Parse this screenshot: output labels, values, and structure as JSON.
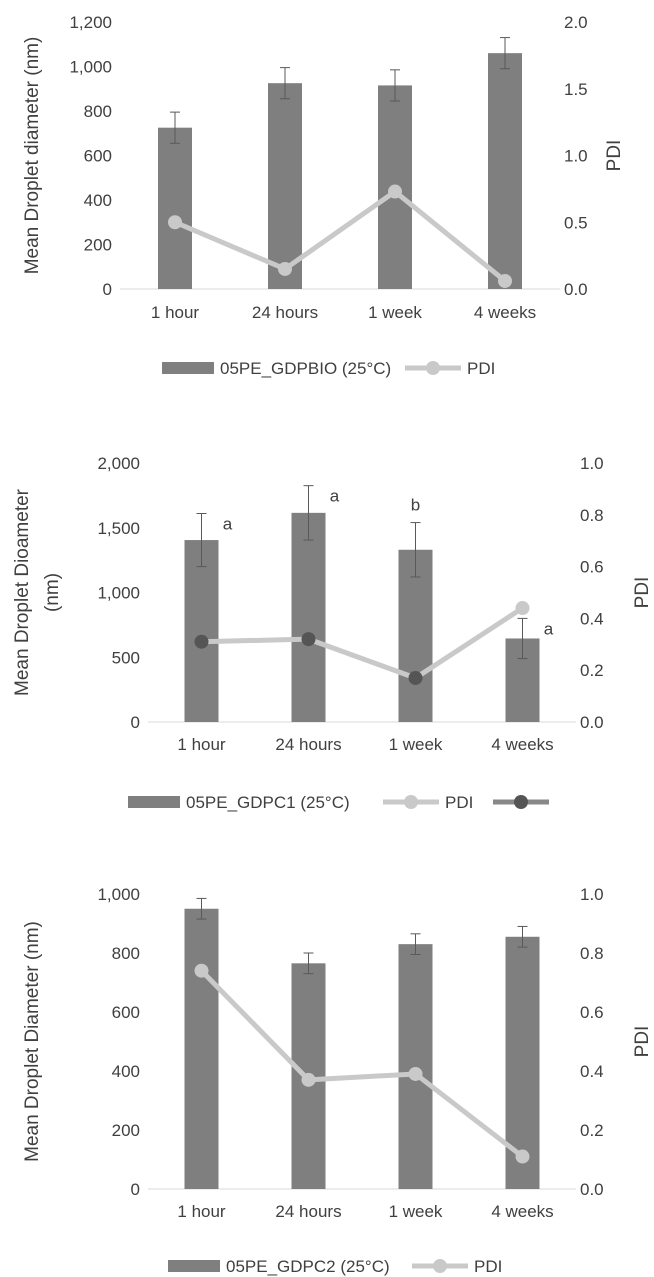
{
  "chart_data": [
    {
      "type": "bar",
      "categories": [
        "1 hour",
        "24 hours",
        "1 week",
        "4 weeks"
      ],
      "ylabel": "Mean Droplet diameter (nm)",
      "y2label": "PDI",
      "ylim": [
        0,
        1200
      ],
      "y2lim": [
        0,
        2.0
      ],
      "yticks": [
        0,
        200,
        400,
        600,
        800,
        1000,
        1200
      ],
      "ytick_labels": [
        "0",
        "200",
        "400",
        "600",
        "800",
        "1,000",
        "1,200"
      ],
      "y2ticks": [
        0,
        0.5,
        1.0,
        1.5,
        2.0
      ],
      "y2tick_labels": [
        "0.0",
        "0.5",
        "1.0",
        "1.5",
        "2.0"
      ],
      "series": [
        {
          "name": "05PE_GDPBIO (25°C)",
          "kind": "bar",
          "axis": "left",
          "values": [
            725,
            925,
            915,
            1060
          ],
          "errors": [
            70,
            70,
            70,
            70
          ]
        },
        {
          "name": "PDI",
          "kind": "line",
          "axis": "right",
          "values": [
            0.5,
            0.15,
            0.73,
            0.06
          ]
        }
      ],
      "annotations": [],
      "legend": [
        "05PE_GDPBIO (25°C)",
        "PDI"
      ],
      "legend_position": "bottom",
      "grid": false,
      "colors": {
        "bar": "#7f7f7f",
        "line": "#c9c9c9",
        "axis": "#d9d9d9",
        "text": "#404040"
      }
    },
    {
      "type": "bar",
      "categories": [
        "1 hour",
        "24 hours",
        "1 week",
        "4 weeks"
      ],
      "ylabel": "Mean Droplet Dioameter (nm)",
      "y2label": "PDI",
      "ylim": [
        0,
        2000
      ],
      "y2lim": [
        0,
        1.0
      ],
      "yticks": [
        0,
        500,
        1000,
        1500,
        2000
      ],
      "ytick_labels": [
        "0",
        "500",
        "1,000",
        "1,500",
        "2,000"
      ],
      "y2ticks": [
        0,
        0.2,
        0.4,
        0.6,
        0.8,
        1.0
      ],
      "y2tick_labels": [
        "0.0",
        "0.2",
        "0.4",
        "0.6",
        "0.8",
        "1.0"
      ],
      "series": [
        {
          "name": "05PE_GDPC1 (25°C)",
          "kind": "bar",
          "axis": "left",
          "values": [
            1405,
            1615,
            1330,
            645
          ],
          "errors": [
            205,
            210,
            210,
            155
          ]
        },
        {
          "name": "PDI",
          "kind": "line",
          "axis": "right",
          "values": [
            0.31,
            0.32,
            0.17,
            0.44
          ]
        }
      ],
      "annotations": [
        "a",
        "a",
        "b",
        "a"
      ],
      "legend": [
        "05PE_GDPC1 (25°C)",
        "PDI",
        ""
      ],
      "legend_position": "bottom",
      "grid": false,
      "colors": {
        "bar": "#7f7f7f",
        "line": "#c9c9c9",
        "axis": "#d9d9d9",
        "text": "#404040"
      }
    },
    {
      "type": "bar",
      "categories": [
        "1 hour",
        "24 hours",
        "1 week",
        "4 weeks"
      ],
      "ylabel": "Mean Droplet Diameter (nm)",
      "y2label": "PDI",
      "ylim": [
        0,
        1000
      ],
      "y2lim": [
        0,
        1.0
      ],
      "yticks": [
        0,
        200,
        400,
        600,
        800,
        1000
      ],
      "ytick_labels": [
        "0",
        "200",
        "400",
        "600",
        "800",
        "1,000"
      ],
      "y2ticks": [
        0,
        0.2,
        0.4,
        0.6,
        0.8,
        1.0
      ],
      "y2tick_labels": [
        "0.0",
        "0.2",
        "0.4",
        "0.6",
        "0.8",
        "1.0"
      ],
      "series": [
        {
          "name": "05PE_GDPC2 (25°C)",
          "kind": "bar",
          "axis": "left",
          "values": [
            950,
            765,
            830,
            855
          ],
          "errors": [
            35,
            35,
            35,
            35
          ]
        },
        {
          "name": "PDI",
          "kind": "line",
          "axis": "right",
          "values": [
            0.74,
            0.37,
            0.39,
            0.11
          ]
        }
      ],
      "annotations": [],
      "legend": [
        "05PE_GDPC2 (25°C)",
        "PDI"
      ],
      "legend_position": "bottom",
      "grid": false,
      "colors": {
        "bar": "#7f7f7f",
        "line": "#c9c9c9",
        "axis": "#d9d9d9",
        "text": "#404040"
      }
    }
  ]
}
